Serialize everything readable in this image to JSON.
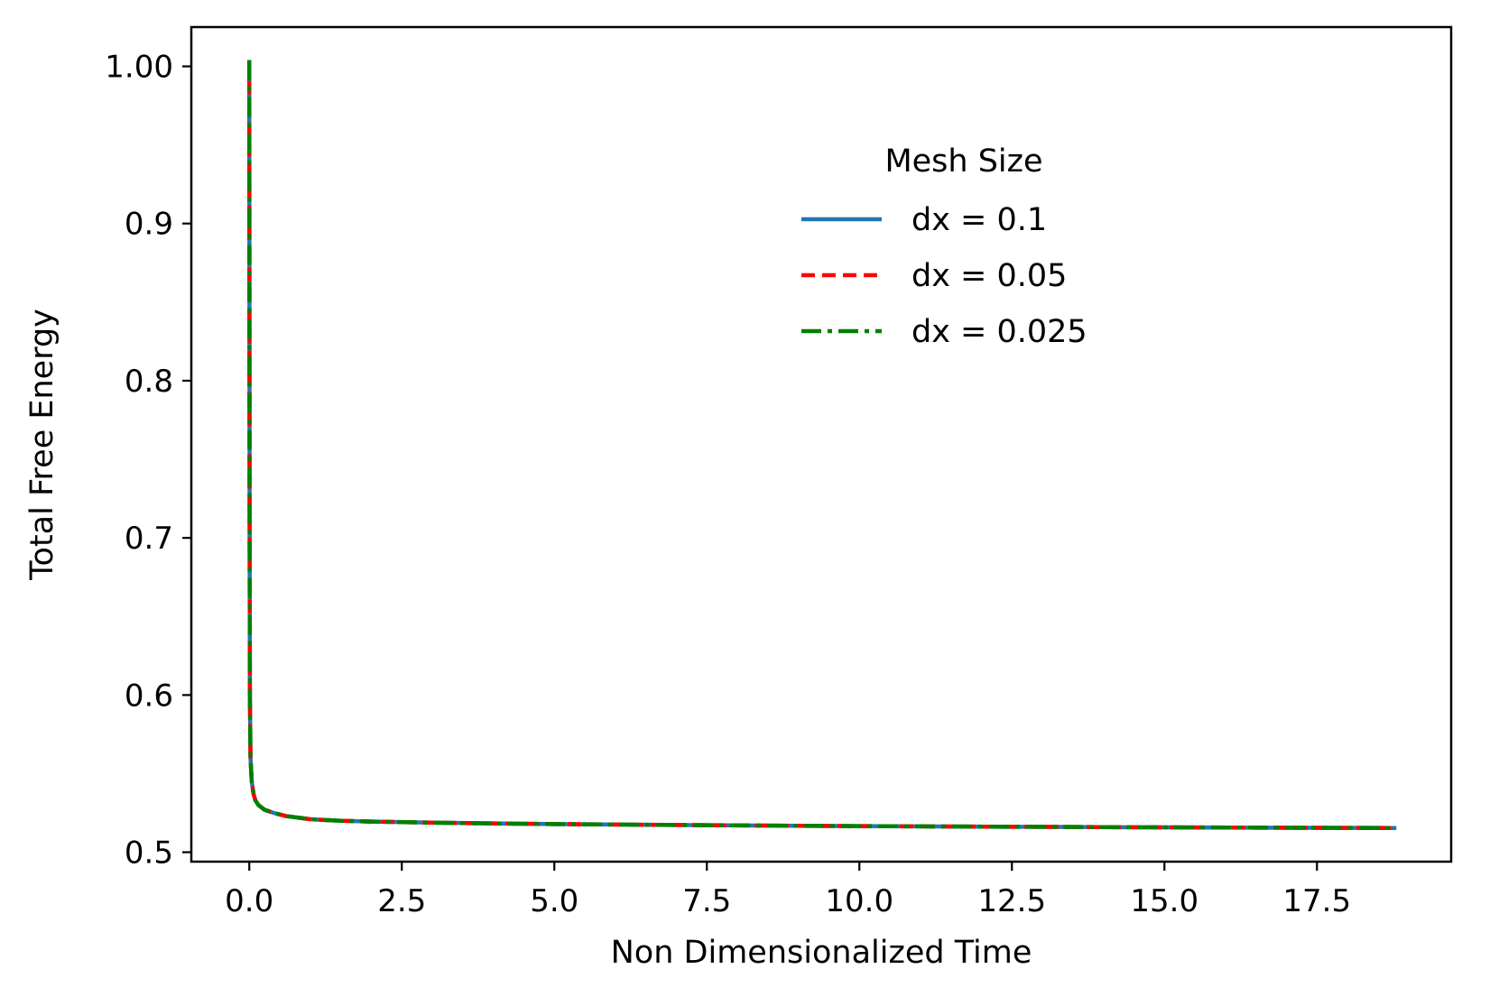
{
  "chart_data": {
    "type": "line",
    "title": "",
    "xlabel": "Non Dimensionalized Time",
    "ylabel": "Total Free Energy",
    "xlim": [
      -0.95,
      19.7
    ],
    "ylim": [
      0.494,
      1.025
    ],
    "x_ticks": [
      {
        "value": 0.0,
        "label": "0.0"
      },
      {
        "value": 2.5,
        "label": "2.5"
      },
      {
        "value": 5.0,
        "label": "5.0"
      },
      {
        "value": 7.5,
        "label": "7.5"
      },
      {
        "value": 10.0,
        "label": "10.0"
      },
      {
        "value": 12.5,
        "label": "12.5"
      },
      {
        "value": 15.0,
        "label": "15.0"
      },
      {
        "value": 17.5,
        "label": "17.5"
      }
    ],
    "y_ticks": [
      {
        "value": 0.5,
        "label": "0.5"
      },
      {
        "value": 0.6,
        "label": "0.6"
      },
      {
        "value": 0.7,
        "label": "0.7"
      },
      {
        "value": 0.8,
        "label": "0.8"
      },
      {
        "value": 0.9,
        "label": "0.9"
      },
      {
        "value": 1.0,
        "label": "1.00"
      }
    ],
    "grid": false,
    "legend": {
      "title": "Mesh Size",
      "placement": "upper-center-right"
    },
    "series": [
      {
        "name": "dx = 0.1",
        "color": "#1f77b4",
        "style": "solid",
        "x": [
          0.0,
          0.005,
          0.01,
          0.02,
          0.04,
          0.07,
          0.1,
          0.15,
          0.25,
          0.4,
          0.6,
          1.0,
          1.5,
          2.0,
          3.0,
          4.0,
          5.0,
          6.0,
          7.5,
          9.0,
          10.0,
          12.5,
          15.0,
          17.5,
          18.8
        ],
        "y": [
          1.004,
          0.72,
          0.6,
          0.56,
          0.545,
          0.537,
          0.533,
          0.53,
          0.527,
          0.525,
          0.523,
          0.521,
          0.52,
          0.5195,
          0.5188,
          0.5183,
          0.5179,
          0.5176,
          0.5172,
          0.5168,
          0.5166,
          0.5162,
          0.5158,
          0.5155,
          0.5154
        ]
      },
      {
        "name": "dx = 0.05",
        "color": "#ff0000",
        "style": "dashed",
        "x": [
          0.0,
          0.005,
          0.01,
          0.02,
          0.04,
          0.07,
          0.1,
          0.15,
          0.25,
          0.4,
          0.6,
          1.0,
          1.5,
          2.0,
          3.0,
          4.0,
          5.0,
          6.0,
          7.5,
          9.0,
          10.0,
          12.5,
          15.0,
          17.5,
          18.8
        ],
        "y": [
          1.004,
          0.72,
          0.6,
          0.56,
          0.545,
          0.537,
          0.533,
          0.53,
          0.527,
          0.525,
          0.523,
          0.521,
          0.52,
          0.5195,
          0.5188,
          0.5183,
          0.5179,
          0.5176,
          0.5172,
          0.5168,
          0.5166,
          0.5162,
          0.5158,
          0.5155,
          0.5154
        ]
      },
      {
        "name": "dx = 0.025",
        "color": "#008000",
        "style": "dashdot",
        "x": [
          0.0,
          0.005,
          0.01,
          0.02,
          0.04,
          0.07,
          0.1,
          0.15,
          0.25,
          0.4,
          0.6,
          1.0,
          1.5,
          2.0,
          3.0,
          4.0,
          5.0,
          6.0,
          7.5,
          9.0,
          10.0,
          12.5,
          15.0,
          17.5,
          18.8
        ],
        "y": [
          1.004,
          0.72,
          0.6,
          0.56,
          0.545,
          0.537,
          0.533,
          0.53,
          0.527,
          0.525,
          0.523,
          0.521,
          0.52,
          0.5195,
          0.5188,
          0.5183,
          0.5179,
          0.5176,
          0.5172,
          0.5168,
          0.5166,
          0.5162,
          0.5158,
          0.5155,
          0.5154
        ]
      }
    ]
  }
}
